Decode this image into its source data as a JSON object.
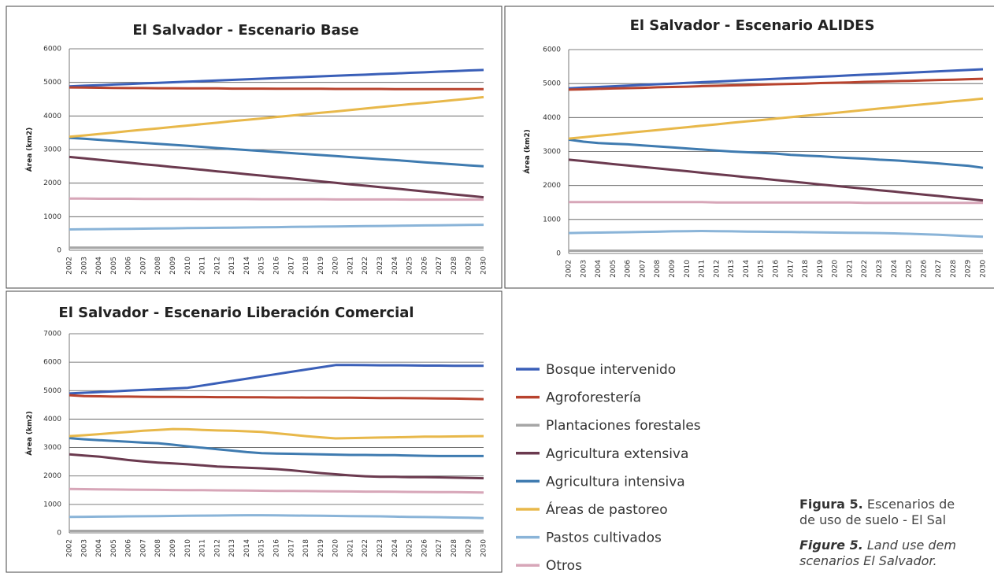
{
  "chart_data": [
    {
      "type": "line",
      "title": "El Salvador - Escenario Base",
      "y_label": "Área (km2)",
      "categories": [
        "2002",
        "2003",
        "2004",
        "2005",
        "2006",
        "2007",
        "2008",
        "2009",
        "2010",
        "2011",
        "2012",
        "2013",
        "2014",
        "2015",
        "2016",
        "2017",
        "2018",
        "2019",
        "2020",
        "2021",
        "2022",
        "2023",
        "2024",
        "2025",
        "2026",
        "2027",
        "2028",
        "2029",
        "2030"
      ],
      "ylim": [
        0,
        6000
      ],
      "yticks": [
        0,
        1000,
        2000,
        3000,
        4000,
        5000,
        6000
      ],
      "grid": true,
      "series": [
        {
          "color": "#3a5fb8",
          "values": [
            4880,
            4900,
            4915,
            4935,
            4950,
            4970,
            4985,
            5005,
            5020,
            5040,
            5055,
            5075,
            5090,
            5110,
            5125,
            5145,
            5160,
            5180,
            5195,
            5215,
            5230,
            5250,
            5265,
            5285,
            5300,
            5320,
            5335,
            5355,
            5370
          ]
        },
        {
          "color": "#b8432e",
          "values": [
            4850,
            4845,
            4840,
            4835,
            4830,
            4830,
            4825,
            4825,
            4820,
            4820,
            4820,
            4815,
            4815,
            4815,
            4810,
            4810,
            4810,
            4810,
            4805,
            4805,
            4805,
            4805,
            4800,
            4800,
            4800,
            4800,
            4800,
            4800,
            4800
          ]
        },
        {
          "color": "#a6a6a6",
          "values": [
            80,
            80,
            80,
            80,
            80,
            80,
            80,
            80,
            80,
            80,
            80,
            80,
            80,
            80,
            80,
            80,
            80,
            80,
            80,
            80,
            80,
            80,
            80,
            80,
            80,
            80,
            80,
            80,
            80
          ]
        },
        {
          "color": "#6b3a4f",
          "values": [
            2780,
            2740,
            2695,
            2650,
            2610,
            2565,
            2525,
            2480,
            2440,
            2395,
            2350,
            2310,
            2265,
            2225,
            2180,
            2140,
            2095,
            2050,
            2010,
            1965,
            1925,
            1880,
            1840,
            1795,
            1750,
            1710,
            1665,
            1625,
            1580
          ]
        },
        {
          "color": "#3f7bb0",
          "values": [
            3350,
            3320,
            3290,
            3260,
            3230,
            3200,
            3170,
            3140,
            3110,
            3080,
            3045,
            3015,
            2985,
            2955,
            2925,
            2895,
            2865,
            2835,
            2805,
            2775,
            2745,
            2715,
            2685,
            2655,
            2620,
            2590,
            2560,
            2530,
            2500
          ]
        },
        {
          "color": "#e8b84a",
          "values": [
            3380,
            3420,
            3465,
            3505,
            3550,
            3590,
            3630,
            3675,
            3715,
            3760,
            3800,
            3845,
            3885,
            3925,
            3970,
            4010,
            4055,
            4095,
            4135,
            4180,
            4220,
            4265,
            4305,
            4350,
            4390,
            4430,
            4475,
            4515,
            4560
          ]
        },
        {
          "color": "#8ab4d8",
          "values": [
            620,
            625,
            630,
            635,
            640,
            645,
            650,
            655,
            660,
            665,
            670,
            675,
            680,
            685,
            690,
            695,
            700,
            705,
            710,
            715,
            720,
            725,
            730,
            735,
            740,
            745,
            750,
            755,
            760
          ]
        },
        {
          "color": "#d7a6b8",
          "values": [
            1540,
            1540,
            1535,
            1535,
            1535,
            1530,
            1530,
            1530,
            1530,
            1525,
            1525,
            1525,
            1525,
            1520,
            1520,
            1520,
            1520,
            1520,
            1515,
            1515,
            1515,
            1515,
            1515,
            1510,
            1510,
            1510,
            1510,
            1510,
            1510
          ]
        }
      ]
    },
    {
      "type": "line",
      "title": "El Salvador - Escenario ALIDES",
      "y_label": "Área (km2)",
      "categories": [
        "2002",
        "2003",
        "2004",
        "2005",
        "2006",
        "2007",
        "2008",
        "2009",
        "2010",
        "2011",
        "2012",
        "2013",
        "2014",
        "2015",
        "2016",
        "2017",
        "2018",
        "2019",
        "2020",
        "2021",
        "2022",
        "2023",
        "2024",
        "2025",
        "2026",
        "2027",
        "2028",
        "2029",
        "2030"
      ],
      "ylim": [
        0,
        6000
      ],
      "yticks": [
        0,
        1000,
        2000,
        3000,
        4000,
        5000,
        6000
      ],
      "grid": true,
      "series": [
        {
          "color": "#3a5fb8",
          "values": [
            4860,
            4880,
            4900,
            4920,
            4940,
            4960,
            4980,
            5000,
            5020,
            5040,
            5060,
            5080,
            5100,
            5120,
            5140,
            5160,
            5180,
            5200,
            5220,
            5240,
            5260,
            5280,
            5300,
            5320,
            5340,
            5360,
            5380,
            5400,
            5420
          ]
        },
        {
          "color": "#b8432e",
          "values": [
            4820,
            4830,
            4845,
            4855,
            4865,
            4875,
            4890,
            4900,
            4910,
            4925,
            4935,
            4945,
            4955,
            4970,
            4980,
            4990,
            5000,
            5015,
            5025,
            5035,
            5050,
            5060,
            5070,
            5080,
            5095,
            5105,
            5115,
            5130,
            5140
          ]
        },
        {
          "color": "#a6a6a6",
          "values": [
            80,
            80,
            80,
            80,
            80,
            80,
            80,
            80,
            80,
            80,
            80,
            80,
            80,
            80,
            80,
            80,
            80,
            80,
            80,
            80,
            80,
            80,
            80,
            80,
            80,
            80,
            80,
            80,
            80
          ]
        },
        {
          "color": "#6b3a4f",
          "values": [
            2760,
            2720,
            2675,
            2630,
            2590,
            2545,
            2505,
            2460,
            2420,
            2375,
            2330,
            2290,
            2245,
            2205,
            2160,
            2120,
            2075,
            2030,
            1990,
            1945,
            1905,
            1860,
            1820,
            1775,
            1730,
            1690,
            1645,
            1605,
            1560
          ]
        },
        {
          "color": "#3f7bb0",
          "values": [
            3350,
            3290,
            3250,
            3230,
            3210,
            3180,
            3150,
            3120,
            3090,
            3060,
            3030,
            3000,
            2980,
            2960,
            2940,
            2900,
            2880,
            2860,
            2830,
            2810,
            2790,
            2760,
            2740,
            2710,
            2680,
            2650,
            2610,
            2580,
            2520
          ]
        },
        {
          "color": "#e8b84a",
          "values": [
            3380,
            3420,
            3465,
            3505,
            3550,
            3590,
            3630,
            3675,
            3715,
            3760,
            3800,
            3845,
            3885,
            3925,
            3970,
            4010,
            4055,
            4095,
            4135,
            4180,
            4220,
            4265,
            4305,
            4350,
            4390,
            4430,
            4475,
            4515,
            4560
          ]
        },
        {
          "color": "#8ab4d8",
          "values": [
            600,
            610,
            615,
            620,
            625,
            635,
            640,
            650,
            655,
            660,
            655,
            650,
            645,
            640,
            635,
            630,
            625,
            620,
            615,
            610,
            605,
            600,
            590,
            580,
            565,
            550,
            530,
            510,
            490
          ]
        },
        {
          "color": "#d7a6b8",
          "values": [
            1510,
            1510,
            1510,
            1510,
            1510,
            1510,
            1510,
            1510,
            1510,
            1510,
            1500,
            1500,
            1500,
            1500,
            1500,
            1500,
            1500,
            1500,
            1500,
            1500,
            1490,
            1490,
            1490,
            1490,
            1490,
            1490,
            1490,
            1490,
            1490
          ]
        }
      ]
    },
    {
      "type": "line",
      "title": "El Salvador - Escenario Liberación Comercial",
      "y_label": "Área (km2)",
      "categories": [
        "2002",
        "2003",
        "2004",
        "2005",
        "2006",
        "2007",
        "2008",
        "2009",
        "2010",
        "2011",
        "2012",
        "2013",
        "2014",
        "2015",
        "2016",
        "2017",
        "2018",
        "2019",
        "2020",
        "2021",
        "2022",
        "2023",
        "2024",
        "2025",
        "2026",
        "2027",
        "2028",
        "2029",
        "2030"
      ],
      "ylim": [
        0,
        7000
      ],
      "yticks": [
        0,
        1000,
        2000,
        3000,
        4000,
        5000,
        6000,
        7000
      ],
      "grid": true,
      "series": [
        {
          "name": "Bosque intervenido",
          "color": "#3a5fb8",
          "values": [
            4900,
            4925,
            4950,
            4975,
            5000,
            5025,
            5050,
            5075,
            5100,
            5180,
            5260,
            5340,
            5420,
            5500,
            5580,
            5660,
            5740,
            5820,
            5900,
            5900,
            5895,
            5890,
            5890,
            5885,
            5880,
            5880,
            5875,
            5870,
            5870
          ]
        },
        {
          "name": "Agroforestería",
          "color": "#b8432e",
          "values": [
            4840,
            4810,
            4800,
            4790,
            4790,
            4785,
            4780,
            4780,
            4775,
            4775,
            4770,
            4770,
            4765,
            4765,
            4760,
            4760,
            4755,
            4755,
            4750,
            4750,
            4745,
            4740,
            4740,
            4735,
            4730,
            4725,
            4720,
            4710,
            4700
          ]
        },
        {
          "name": "Plantaciones forestales",
          "color": "#a6a6a6",
          "values": [
            70,
            70,
            70,
            70,
            70,
            70,
            70,
            70,
            70,
            70,
            70,
            70,
            70,
            70,
            70,
            70,
            70,
            70,
            70,
            70,
            70,
            70,
            70,
            70,
            70,
            70,
            70,
            70,
            70
          ]
        },
        {
          "name": "Agricultura extensiva",
          "color": "#6b3a4f",
          "values": [
            2760,
            2720,
            2680,
            2620,
            2560,
            2510,
            2470,
            2440,
            2410,
            2370,
            2330,
            2310,
            2290,
            2270,
            2240,
            2200,
            2150,
            2100,
            2060,
            2020,
            1990,
            1970,
            1970,
            1960,
            1960,
            1950,
            1940,
            1930,
            1920
          ]
        },
        {
          "name": "Agricultura intensiva",
          "color": "#3f7bb0",
          "values": [
            3330,
            3290,
            3260,
            3230,
            3200,
            3170,
            3150,
            3100,
            3040,
            2990,
            2940,
            2890,
            2840,
            2800,
            2790,
            2780,
            2770,
            2760,
            2750,
            2740,
            2740,
            2730,
            2730,
            2720,
            2710,
            2700,
            2700,
            2700,
            2700
          ]
        },
        {
          "name": "Áreas de pastoreo",
          "color": "#e8b84a",
          "values": [
            3400,
            3430,
            3470,
            3510,
            3550,
            3590,
            3620,
            3650,
            3640,
            3620,
            3600,
            3590,
            3570,
            3550,
            3500,
            3450,
            3400,
            3360,
            3320,
            3330,
            3340,
            3350,
            3360,
            3370,
            3380,
            3385,
            3390,
            3395,
            3400
          ]
        },
        {
          "name": "Pastos cultivados",
          "color": "#8ab4d8",
          "values": [
            560,
            565,
            570,
            575,
            580,
            585,
            590,
            595,
            600,
            605,
            610,
            615,
            620,
            620,
            615,
            610,
            605,
            600,
            595,
            590,
            585,
            580,
            570,
            560,
            555,
            550,
            540,
            530,
            520
          ]
        },
        {
          "name": "Otros",
          "color": "#d7a6b8",
          "values": [
            1540,
            1535,
            1530,
            1525,
            1520,
            1515,
            1510,
            1505,
            1500,
            1500,
            1495,
            1490,
            1485,
            1480,
            1475,
            1475,
            1470,
            1465,
            1460,
            1455,
            1450,
            1450,
            1445,
            1440,
            1435,
            1430,
            1430,
            1425,
            1420
          ]
        }
      ]
    }
  ],
  "caption": {
    "es_label": "Figura 5.",
    "es_lines": [
      "Escenarios de",
      "de uso de suelo - El Sal"
    ],
    "en_label": "Figure 5.",
    "en_lines": [
      "Land use dem",
      "scenarios  El Salvador."
    ]
  }
}
